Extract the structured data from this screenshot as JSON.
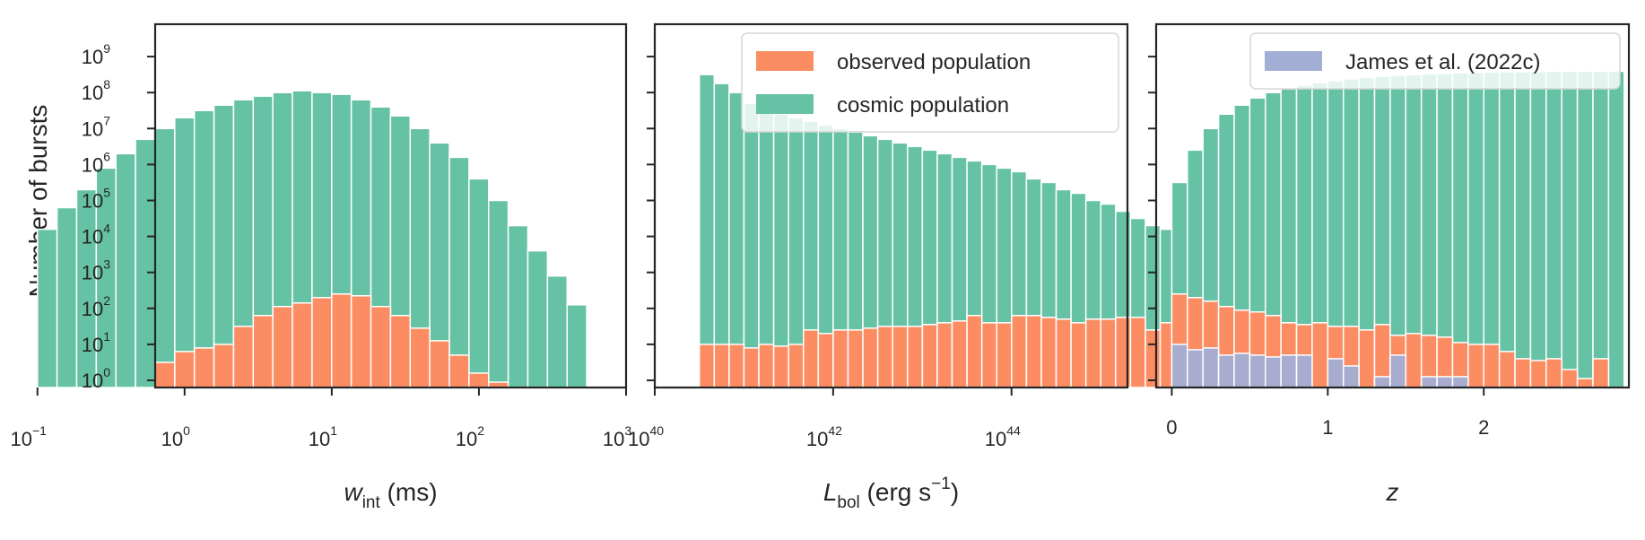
{
  "colors": {
    "cosmic": "#66c2a5",
    "observed": "#fc8d62",
    "james": "#a3aed4",
    "axis": "#262626"
  },
  "chart_data": [
    {
      "type": "bar",
      "xscale": "log",
      "xlim": [
        -0.2,
        3.0
      ],
      "ylim": [
        -0.2,
        9.9
      ],
      "xlabel_math": "w",
      "xlabel_sub": "int",
      "xlabel_unit": "(ms)",
      "ylabel": "Number of bursts",
      "xticks": [
        {
          "value": -1,
          "base": "10",
          "exp": "−1"
        },
        {
          "value": 0,
          "base": "10",
          "exp": "0"
        },
        {
          "value": 1,
          "base": "10",
          "exp": "1"
        },
        {
          "value": 2,
          "base": "10",
          "exp": "2"
        },
        {
          "value": 3,
          "base": "10",
          "exp": "3"
        }
      ],
      "yticks": [
        {
          "value": 9,
          "base": "10",
          "exp": "9"
        },
        {
          "value": 8,
          "base": "10",
          "exp": "8"
        },
        {
          "value": 7,
          "base": "10",
          "exp": "7"
        },
        {
          "value": 6,
          "base": "10",
          "exp": "6"
        },
        {
          "value": 5,
          "base": "10",
          "exp": "5"
        },
        {
          "value": 4,
          "base": "10",
          "exp": "4"
        },
        {
          "value": 3,
          "base": "10",
          "exp": "3"
        },
        {
          "value": 2,
          "base": "10",
          "exp": "2"
        },
        {
          "value": 1,
          "base": "10",
          "exp": "1"
        },
        {
          "value": 0,
          "base": "10",
          "exp": "0"
        }
      ],
      "bins": {
        "start_log10": -1.0,
        "width_log10": 0.1333
      },
      "series": [
        {
          "key": "cosmic",
          "log10_values": [
            4.2,
            4.8,
            5.3,
            5.9,
            6.3,
            6.7,
            7.0,
            7.3,
            7.5,
            7.65,
            7.8,
            7.9,
            8.0,
            8.05,
            8.0,
            7.95,
            7.8,
            7.6,
            7.35,
            7.0,
            6.6,
            6.2,
            5.6,
            5.0,
            4.3,
            3.6,
            2.9,
            2.1
          ]
        },
        {
          "key": "observed",
          "log10_values": [
            null,
            null,
            null,
            null,
            null,
            null,
            0.5,
            0.8,
            0.9,
            1.0,
            1.5,
            1.8,
            2.05,
            2.15,
            2.3,
            2.4,
            2.35,
            2.05,
            1.8,
            1.45,
            1.1,
            0.7,
            0.2,
            -0.05,
            null,
            null,
            null,
            null
          ]
        }
      ]
    },
    {
      "type": "bar",
      "xscale": "log",
      "xlim": [
        40,
        45.3
      ],
      "ylim": [
        -0.2,
        9.9
      ],
      "xlabel_math": "L",
      "xlabel_sub": "bol",
      "xlabel_unit_text": "(erg s",
      "xlabel_unit_exp": "−1",
      "xlabel_unit_close": ")",
      "xticks": [
        {
          "value": 40,
          "base": "10",
          "exp": "40"
        },
        {
          "value": 42,
          "base": "10",
          "exp": "42"
        },
        {
          "value": 44,
          "base": "10",
          "exp": "44"
        }
      ],
      "legend": [
        "observed population",
        "cosmic population"
      ],
      "bins": {
        "start_log10": 40.5,
        "width_log10": 0.1667
      },
      "series": [
        {
          "key": "cosmic",
          "log10_values": [
            8.5,
            8.25,
            8.0,
            7.7,
            7.5,
            7.4,
            7.3,
            7.2,
            7.1,
            7.0,
            6.9,
            6.8,
            6.7,
            6.6,
            6.5,
            6.4,
            6.3,
            6.2,
            6.1,
            6.0,
            5.9,
            5.8,
            5.6,
            5.5,
            5.3,
            5.2,
            5.0,
            4.9,
            4.7,
            4.5,
            4.3,
            4.2,
            4.0,
            3.8
          ]
        },
        {
          "key": "observed",
          "log10_values": [
            1.0,
            1.0,
            1.0,
            0.9,
            1.0,
            0.95,
            1.0,
            1.4,
            1.3,
            1.4,
            1.4,
            1.45,
            1.5,
            1.5,
            1.5,
            1.55,
            1.6,
            1.65,
            1.8,
            1.6,
            1.6,
            1.8,
            1.8,
            1.75,
            1.7,
            1.6,
            1.7,
            1.7,
            1.75,
            1.75,
            1.4,
            1.6,
            1.6,
            1.5
          ]
        }
      ]
    },
    {
      "type": "bar",
      "xscale": "linear",
      "xlim": [
        -0.1,
        2.93
      ],
      "ylim": [
        -0.2,
        9.9
      ],
      "xlabel_math": "z",
      "xticks": [
        {
          "value": 0,
          "label": "0"
        },
        {
          "value": 1,
          "label": "1"
        },
        {
          "value": 2,
          "label": "2"
        }
      ],
      "legend": [
        "James et al. (2022c)"
      ],
      "bins": {
        "start": 0.0,
        "width": 0.1
      },
      "series": [
        {
          "key": "cosmic",
          "log10_values": [
            5.5,
            6.4,
            7.0,
            7.4,
            7.65,
            7.85,
            8.0,
            8.1,
            8.2,
            8.28,
            8.33,
            8.38,
            8.42,
            8.45,
            8.48,
            8.5,
            8.52,
            8.53,
            8.55,
            8.56,
            8.57,
            8.58,
            8.58,
            8.58,
            8.59,
            8.59,
            8.59,
            8.59,
            8.59
          ]
        },
        {
          "key": "observed",
          "log10_values": [
            2.4,
            2.3,
            2.2,
            2.05,
            1.95,
            1.9,
            1.8,
            1.6,
            1.55,
            1.6,
            1.5,
            1.5,
            1.4,
            1.55,
            1.25,
            1.3,
            1.25,
            1.2,
            1.05,
            1.0,
            1.0,
            0.8,
            0.6,
            0.55,
            0.6,
            0.3,
            0.05,
            0.6,
            null
          ]
        },
        {
          "key": "james",
          "log10_values": [
            1.0,
            0.85,
            0.9,
            0.7,
            0.75,
            0.7,
            0.65,
            0.7,
            0.7,
            null,
            0.6,
            0.4,
            null,
            0.1,
            0.7,
            null,
            0.1,
            0.1,
            0.1,
            null,
            null,
            null,
            null,
            null,
            null,
            null,
            null,
            null,
            null
          ]
        }
      ]
    }
  ]
}
